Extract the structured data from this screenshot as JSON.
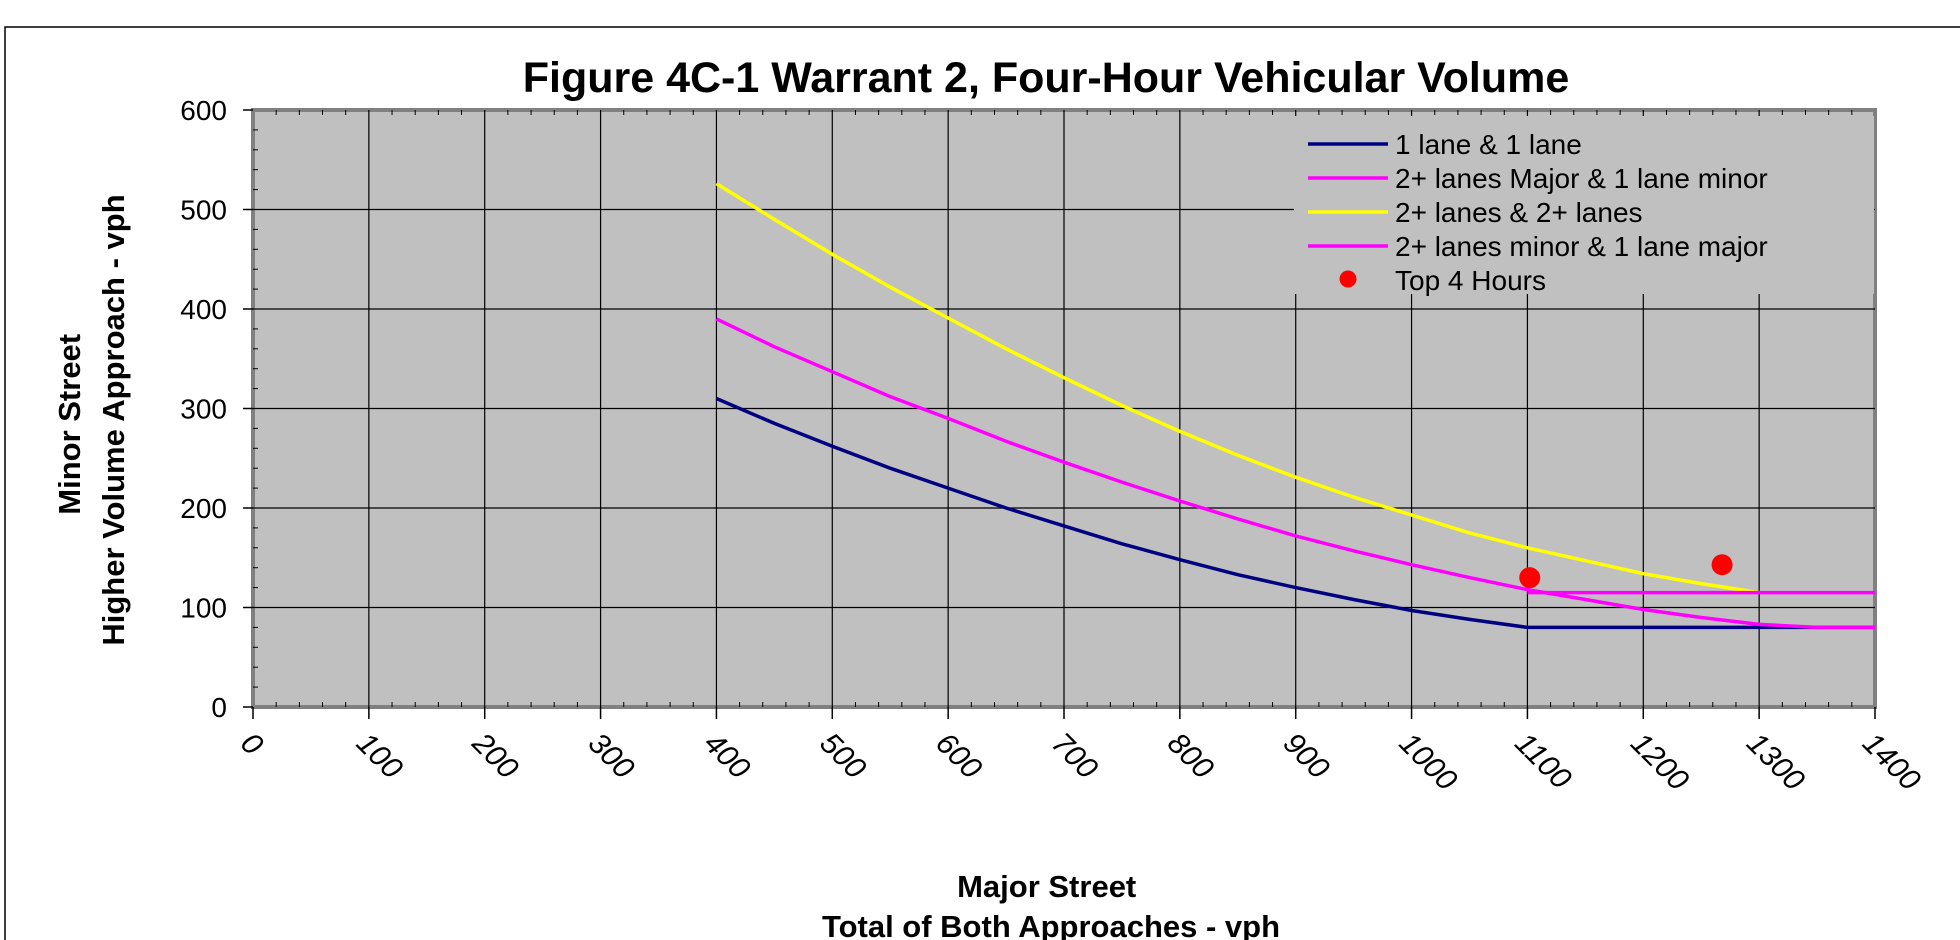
{
  "chart_data": {
    "type": "line",
    "title": "Figure 4C-1 Warrant 2, Four-Hour Vehicular Volume",
    "xlabel_lines": [
      "Major Street",
      "Total of Both Approaches - vph"
    ],
    "ylabel_lines": [
      "Minor Street",
      "Higher Volume Approach - vph"
    ],
    "xlim": [
      0,
      1400
    ],
    "ylim": [
      0,
      600
    ],
    "x_ticks": [
      "0",
      "100",
      "200",
      "300",
      "400",
      "500",
      "600",
      "700",
      "800",
      "900",
      "1000",
      "1100",
      "1200",
      "1300",
      "1400"
    ],
    "y_ticks": [
      "0",
      "100",
      "200",
      "300",
      "400",
      "500",
      "600"
    ],
    "grid": true,
    "legend_position": "top-right",
    "series": [
      {
        "name": "1 lane & 1 lane",
        "color": "#000080",
        "x": [
          400,
          450,
          500,
          550,
          600,
          650,
          700,
          750,
          800,
          850,
          900,
          950,
          1000,
          1050,
          1100,
          1150,
          1200,
          1250,
          1300,
          1350,
          1400
        ],
        "y": [
          310,
          285,
          262,
          240,
          220,
          200,
          182,
          164,
          148,
          133,
          120,
          108,
          97,
          88,
          80,
          80,
          80,
          80,
          80,
          80,
          80
        ]
      },
      {
        "name": "2+ lanes Major & 1 lane minor",
        "color": "#ff00ff",
        "x": [
          400,
          450,
          500,
          550,
          600,
          650,
          700,
          750,
          800,
          850,
          900,
          950,
          1000,
          1050,
          1100,
          1150,
          1200,
          1250,
          1300,
          1350,
          1400
        ],
        "y": [
          390,
          362,
          337,
          312,
          290,
          267,
          246,
          226,
          207,
          189,
          172,
          157,
          143,
          130,
          118,
          108,
          98,
          90,
          83,
          80,
          80
        ]
      },
      {
        "name": "2+ lanes & 2+ lanes",
        "color": "#ffff00",
        "x": [
          400,
          450,
          500,
          550,
          600,
          650,
          700,
          750,
          800,
          850,
          900,
          950,
          1000,
          1050,
          1100,
          1150,
          1200,
          1250,
          1300
        ],
        "y": [
          526,
          490,
          455,
          422,
          391,
          360,
          331,
          303,
          277,
          253,
          231,
          211,
          193,
          175,
          160,
          147,
          134,
          124,
          115
        ]
      },
      {
        "name": "2+ lanes minor & 1 lane major",
        "color": "#ff00ff",
        "x": [
          1100,
          1150,
          1200,
          1250,
          1300,
          1350,
          1400
        ],
        "y": [
          115,
          115,
          115,
          115,
          115,
          115,
          115
        ]
      },
      {
        "name": "Top 4 Hours",
        "type": "scatter",
        "color": "#ff0000",
        "x": [
          1102,
          1268
        ],
        "y": [
          130,
          143
        ]
      }
    ]
  }
}
